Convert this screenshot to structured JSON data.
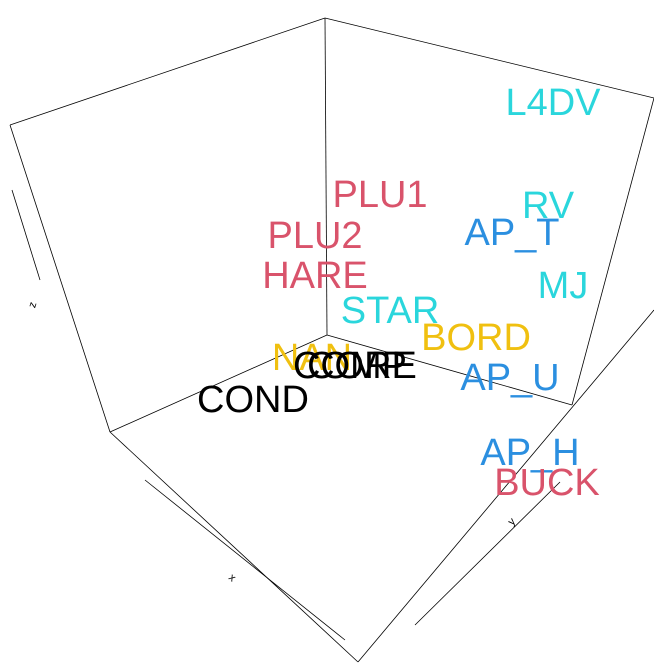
{
  "chart_data": {
    "type": "text3d",
    "axis_labels": {
      "x": "x",
      "y": "y",
      "z": "z"
    },
    "points": [
      {
        "label": "L4DV",
        "color": "#2ad6dc"
      },
      {
        "label": "RV",
        "color": "#2ad6dc"
      },
      {
        "label": "AP_T",
        "color": "#2b8fe0"
      },
      {
        "label": "MJ",
        "color": "#2ad6dc"
      },
      {
        "label": "PLU1",
        "color": "#d9536b"
      },
      {
        "label": "PLU2",
        "color": "#d9536b"
      },
      {
        "label": "HARE",
        "color": "#d9536b"
      },
      {
        "label": "STAR",
        "color": "#2ad6dc"
      },
      {
        "label": "BORD",
        "color": "#f0c010"
      },
      {
        "label": "NAN",
        "color": "#f0c010"
      },
      {
        "label": "CORE",
        "color": "#000000"
      },
      {
        "label": "COMP",
        "color": "#000000"
      },
      {
        "label": "AP_U",
        "color": "#2b8fe0"
      },
      {
        "label": "COND",
        "color": "#000000"
      },
      {
        "label": "AP_H",
        "color": "#2b8fe0"
      },
      {
        "label": "BUCK",
        "color": "#d9536b"
      }
    ]
  }
}
